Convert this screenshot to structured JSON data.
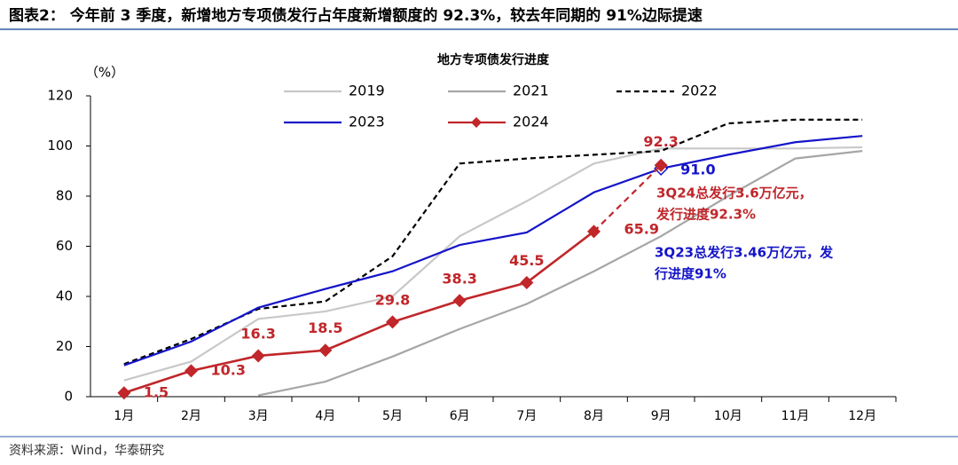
{
  "header": {
    "title": "图表2：  今年前 3 季度，新增地方专项债发行占年度新增额度的 92.3%，较去年同期的 91%边际提速"
  },
  "chart_data": {
    "type": "line",
    "title": "地方专项债发行进度",
    "y_label": "（%）",
    "categories": [
      "1月",
      "2月",
      "3月",
      "4月",
      "5月",
      "6月",
      "7月",
      "8月",
      "9月",
      "10月",
      "11月",
      "12月"
    ],
    "series": [
      {
        "name": "2019",
        "color": "#c8c8c8",
        "values": [
          6.5,
          14,
          31,
          34,
          40,
          64,
          78,
          93,
          99,
          99,
          99,
          99.5
        ]
      },
      {
        "name": "2021",
        "color": "#a6a6a6",
        "values": [
          null,
          null,
          0.5,
          6,
          16,
          27,
          37,
          50,
          64,
          80,
          95,
          98
        ]
      },
      {
        "name": "2022",
        "color": "#000000",
        "dashed": true,
        "values": [
          13,
          23,
          35,
          38,
          56,
          93,
          95,
          96.5,
          98,
          109,
          110.5,
          110.5
        ]
      },
      {
        "name": "2023",
        "color": "#1414c8",
        "values": [
          12.5,
          22,
          35.5,
          43,
          50,
          60.5,
          65.5,
          81.5,
          91,
          96.5,
          101.5,
          104
        ],
        "value_labels": [
          null,
          null,
          null,
          null,
          null,
          null,
          null,
          null,
          "91.0",
          null,
          null,
          null
        ]
      },
      {
        "name": "2024",
        "color": "#c0262a",
        "markers": true,
        "dash_last_segment": true,
        "show_values": true,
        "values": [
          1.5,
          10.3,
          16.3,
          18.5,
          29.8,
          38.3,
          45.5,
          65.9,
          92.3,
          null,
          null,
          null
        ]
      }
    ],
    "annotations": [
      {
        "lines": [
          "3Q24总发行3.6万亿元，",
          "发行进度92.3%"
        ],
        "color": "#c0262a"
      },
      {
        "lines": [
          "3Q23总发行3.46万亿元，发",
          "行进度91%"
        ],
        "color": "#1414c8"
      }
    ],
    "ylim": [
      0,
      120
    ],
    "yticks": [
      0,
      20,
      40,
      60,
      80,
      100,
      120
    ],
    "grid": false
  },
  "footer": {
    "source": "资料来源：Wind，华泰研究"
  }
}
